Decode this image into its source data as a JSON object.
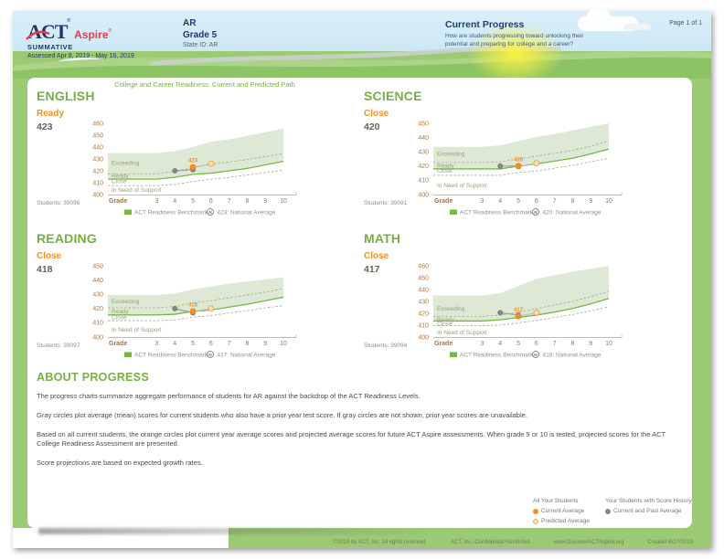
{
  "header": {
    "logo_act": "ACT",
    "logo_aspire": "Aspire",
    "reg": "®",
    "program": "SUMMATIVE",
    "assessed": "Assessed Apr 8, 2019 - May 16, 2019",
    "org": "AR",
    "grade": "Grade 5",
    "state_id": "State ID: AR",
    "section_title": "Current Progress",
    "section_subtitle": "How are students progressing toward unlocking their potential and preparing for college and a career?",
    "page_label": "Page 1 of 1"
  },
  "chart_title": "College and Career Readiness: Current and Predicted Path",
  "colors": {
    "green": "#76b043",
    "orange": "#f5901f",
    "band_fill": "#dde9d4",
    "benchmark_line": "#79b743",
    "dashed_line": "#a3ab84",
    "gray_point": "#85878a",
    "predicted_fill": "#fbdcb4",
    "axis_brown": "#a57347",
    "sky": "#cfe9f5",
    "field_green": "#9cca74",
    "navy": "#23366b",
    "aspire_red": "#e03e4e"
  },
  "chart_data": [
    {
      "type": "line",
      "subject": "ENGLISH",
      "level": "Ready",
      "score": "423",
      "students_label": "Students: 39096",
      "xlabel": "Grade",
      "x": [
        3,
        4,
        5,
        6,
        7,
        8,
        9,
        10
      ],
      "ylim": [
        400,
        460
      ],
      "yticks": [
        400,
        410,
        420,
        430,
        440,
        450,
        460
      ],
      "band_top": [
        435,
        436.5,
        440,
        444.5,
        446.5,
        449.5,
        452.5,
        455.5
      ],
      "benchmark": [
        413,
        414.5,
        417,
        418,
        420,
        422,
        425,
        428
      ],
      "exceeding_boundary": [
        417.5,
        419.5,
        422.5,
        425.5,
        427.5,
        429.5,
        432,
        434.5
      ],
      "close_boundary": [
        407.5,
        408.5,
        411,
        413,
        414.5,
        416.5,
        418.5,
        420.5
      ],
      "zone_labels": [
        "Exceeding",
        "Ready",
        "Close",
        "In Need of Support"
      ],
      "zone_values": [
        426.5,
        415.8,
        411,
        404
      ],
      "prior_series": {
        "name": "Current and Past Average",
        "x": [
          4,
          5
        ],
        "y": [
          420,
          421
        ]
      },
      "current_point": {
        "x": 5,
        "y": 423,
        "label": "423"
      },
      "predicted_point": {
        "x": 6,
        "y": 426
      },
      "legend_benchmark": "ACT Readiness Benchmark",
      "legend_national": "423: National Average"
    },
    {
      "type": "line",
      "subject": "SCIENCE",
      "level": "Close",
      "score": "420",
      "students_label": "Students: 39091",
      "xlabel": "Grade",
      "x": [
        3,
        4,
        5,
        6,
        7,
        8,
        9,
        10
      ],
      "ylim": [
        400,
        450
      ],
      "yticks": [
        400,
        410,
        420,
        430,
        440,
        450
      ],
      "band_top": [
        433.5,
        434.5,
        437.5,
        440.5,
        442.5,
        445,
        447.5,
        450
      ],
      "benchmark": [
        418,
        418,
        420,
        421.5,
        423.5,
        425.5,
        428.5,
        432
      ],
      "exceeding_boundary": [
        422.5,
        423,
        425,
        427,
        429,
        431,
        434,
        437.5
      ],
      "close_boundary": [
        413.5,
        413.5,
        415.5,
        416.5,
        418.5,
        420.5,
        423,
        425.5
      ],
      "zone_labels": [
        "Exceeding",
        "Ready",
        "Close",
        "In Need of Support"
      ],
      "zone_values": [
        428.5,
        420.3,
        416.8,
        406.5
      ],
      "prior_series": {
        "name": "Current and Past Average",
        "x": [
          4,
          5
        ],
        "y": [
          420,
          420
        ]
      },
      "current_point": {
        "x": 5,
        "y": 420,
        "label": "420"
      },
      "predicted_point": {
        "x": 6,
        "y": 422
      },
      "legend_benchmark": "ACT Readiness Benchmark",
      "legend_national": "420: National Average"
    },
    {
      "type": "line",
      "subject": "READING",
      "level": "Close",
      "score": "418",
      "students_label": "Students: 39097",
      "xlabel": "Grade",
      "x": [
        3,
        4,
        5,
        6,
        7,
        8,
        9,
        10
      ],
      "ylim": [
        400,
        450
      ],
      "yticks": [
        400,
        410,
        420,
        430,
        440,
        450
      ],
      "band_top": [
        429.5,
        430.5,
        433.5,
        435.5,
        437.5,
        439,
        440.5,
        442
      ],
      "benchmark": [
        415.5,
        416,
        418,
        419,
        421,
        423,
        425.5,
        428
      ],
      "exceeding_boundary": [
        420.5,
        421.5,
        424,
        425.5,
        427.5,
        429.5,
        431.5,
        434
      ],
      "close_boundary": [
        411.5,
        412,
        414,
        415,
        417,
        418.5,
        420.5,
        422
      ],
      "zone_labels": [
        "Exceeding",
        "Ready",
        "Close",
        "In Need of Support"
      ],
      "zone_values": [
        425,
        417.8,
        413.8,
        405
      ],
      "prior_series": {
        "name": "Current and Past Average",
        "x": [
          4,
          5
        ],
        "y": [
          420,
          417
        ]
      },
      "current_point": {
        "x": 5,
        "y": 418,
        "label": "418"
      },
      "predicted_point": {
        "x": 6,
        "y": 420
      },
      "legend_benchmark": "ACT Readiness Benchmark",
      "legend_national": "417: National Average"
    },
    {
      "type": "line",
      "subject": "MATH",
      "level": "Close",
      "score": "417",
      "students_label": "Students: 39094",
      "xlabel": "Grade",
      "x": [
        3,
        4,
        5,
        6,
        7,
        8,
        9,
        10
      ],
      "ylim": [
        400,
        460
      ],
      "yticks": [
        400,
        410,
        420,
        430,
        440,
        450,
        460
      ],
      "band_top": [
        435,
        437,
        443,
        449,
        452,
        455,
        457.5,
        460
      ],
      "benchmark": [
        413.5,
        414.5,
        416.5,
        418.5,
        421,
        424,
        428,
        432.5
      ],
      "exceeding_boundary": [
        417.5,
        418.5,
        421,
        424,
        427,
        430,
        434,
        438.5
      ],
      "close_boundary": [
        409.5,
        410,
        412,
        414,
        416.5,
        419,
        422,
        425.5
      ],
      "zone_labels": [
        "Exceeding",
        "Ready",
        "Close",
        "In Need of Support"
      ],
      "zone_values": [
        424,
        414.8,
        411.3,
        404
      ],
      "prior_series": {
        "name": "Current and Past Average",
        "x": [
          4,
          5
        ],
        "y": [
          420.5,
          418.5
        ]
      },
      "current_point": {
        "x": 5,
        "y": 417.5,
        "label": "417"
      },
      "predicted_point": {
        "x": 6,
        "y": 420.5
      },
      "legend_benchmark": "ACT Readiness Benchmark",
      "legend_national": "418: National Average"
    }
  ],
  "about": {
    "title": "ABOUT PROGRESS",
    "paragraphs": [
      "The progress charts summarize aggregate performance of students for AR against the backdrop of the ACT Readiness Levels.",
      "Gray circles plot average (mean) scores for current students who also have a prior year test score. If gray circles are not shown, prior year scores are unavailable.",
      "Based on all current students, the orange circles plot current year average scores and projected average scores for future ACT Aspire assessments. When grade 9 or 10 is tested, projected scores for the ACT College Readiness Assessment are presented.",
      "Score projections are based on expected growth rates."
    ]
  },
  "score_legend": {
    "all_students": {
      "title": "All Your Students",
      "items": [
        {
          "label": "Current Average",
          "marker": "orange-filled-dot"
        },
        {
          "label": "Predicted Average",
          "marker": "orange-open-dot"
        }
      ]
    },
    "history": {
      "title": "Your Students with Score History",
      "items": [
        {
          "label": "Current and Past Average",
          "marker": "gray-filled-dot"
        }
      ]
    }
  },
  "footer": {
    "copyright": "©2019 by ACT, Inc. All rights reserved.",
    "confidential": "ACT, Inc.-Confidential Restricted",
    "url": "www.DiscoverACTAspire.org",
    "created": "Created 6/27/2019"
  }
}
